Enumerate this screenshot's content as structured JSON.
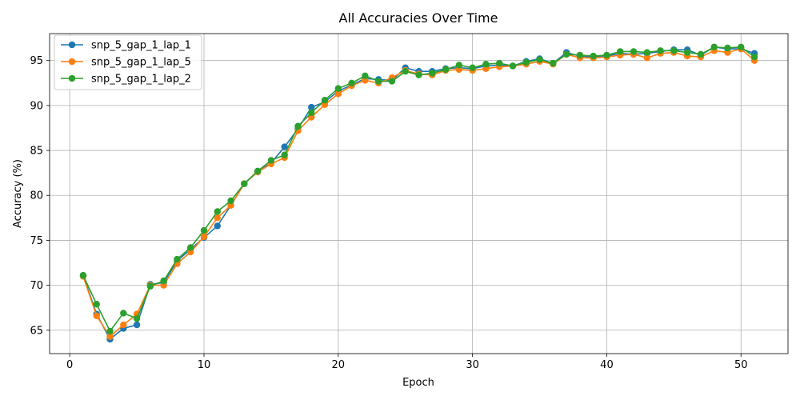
{
  "chart_data": {
    "type": "line",
    "title": "All Accuracies Over Time",
    "xlabel": "Epoch",
    "ylabel": "Accuracy (%)",
    "xlim": [
      -1.5,
      53.5
    ],
    "ylim": [
      62.4,
      98.0
    ],
    "xticks": [
      0,
      10,
      20,
      30,
      40,
      50
    ],
    "yticks": [
      65,
      70,
      75,
      80,
      85,
      90,
      95
    ],
    "grid": true,
    "legend_position": "top-left",
    "x": [
      1,
      2,
      3,
      4,
      5,
      6,
      7,
      8,
      9,
      10,
      11,
      12,
      13,
      14,
      15,
      16,
      17,
      18,
      19,
      20,
      21,
      22,
      23,
      24,
      25,
      26,
      27,
      28,
      29,
      30,
      31,
      32,
      33,
      34,
      35,
      36,
      37,
      38,
      39,
      40,
      41,
      42,
      43,
      44,
      45,
      46,
      47,
      48,
      49,
      50,
      51
    ],
    "series": [
      {
        "name": "snp_5_gap_1_lap_1",
        "color": "#1f77b4",
        "values": [
          71.1,
          66.8,
          64.0,
          65.2,
          65.6,
          70.1,
          70.3,
          72.7,
          74.0,
          75.3,
          76.6,
          78.9,
          81.3,
          82.7,
          83.6,
          85.4,
          87.4,
          89.8,
          90.4,
          91.6,
          92.3,
          93.0,
          92.9,
          92.8,
          94.2,
          93.8,
          93.8,
          94.1,
          94.2,
          94.1,
          94.4,
          94.5,
          94.4,
          94.9,
          95.2,
          94.7,
          95.9,
          95.5,
          95.4,
          95.5,
          95.8,
          95.7,
          95.8,
          96.0,
          96.2,
          96.2,
          95.6,
          96.5,
          96.3,
          96.3,
          95.8
        ]
      },
      {
        "name": "snp_5_gap_1_lap_5",
        "color": "#ff7f0e",
        "values": [
          71.0,
          66.6,
          64.3,
          65.6,
          66.8,
          70.0,
          70.0,
          72.4,
          73.7,
          75.4,
          77.5,
          78.9,
          81.3,
          82.6,
          83.5,
          84.2,
          87.2,
          88.7,
          90.1,
          91.3,
          92.2,
          92.8,
          92.5,
          93.1,
          93.9,
          93.5,
          93.4,
          93.9,
          94.0,
          93.9,
          94.1,
          94.3,
          94.4,
          94.6,
          94.9,
          94.6,
          95.7,
          95.3,
          95.3,
          95.4,
          95.6,
          95.7,
          95.3,
          95.8,
          95.9,
          95.5,
          95.4,
          96.1,
          95.9,
          96.3,
          95.0
        ]
      },
      {
        "name": "snp_5_gap_1_lap_2",
        "color": "#2ca02c",
        "values": [
          71.1,
          67.9,
          64.9,
          66.9,
          66.3,
          69.9,
          70.5,
          72.9,
          74.2,
          76.1,
          78.2,
          79.4,
          81.3,
          82.7,
          83.9,
          84.5,
          87.7,
          89.2,
          90.6,
          91.9,
          92.5,
          93.3,
          92.7,
          92.7,
          93.8,
          93.4,
          93.6,
          94.0,
          94.5,
          94.2,
          94.6,
          94.7,
          94.4,
          94.8,
          95.1,
          94.7,
          95.7,
          95.6,
          95.5,
          95.6,
          96.0,
          96.0,
          95.9,
          96.1,
          96.1,
          95.9,
          95.7,
          96.5,
          96.4,
          96.5,
          95.4
        ]
      }
    ]
  }
}
